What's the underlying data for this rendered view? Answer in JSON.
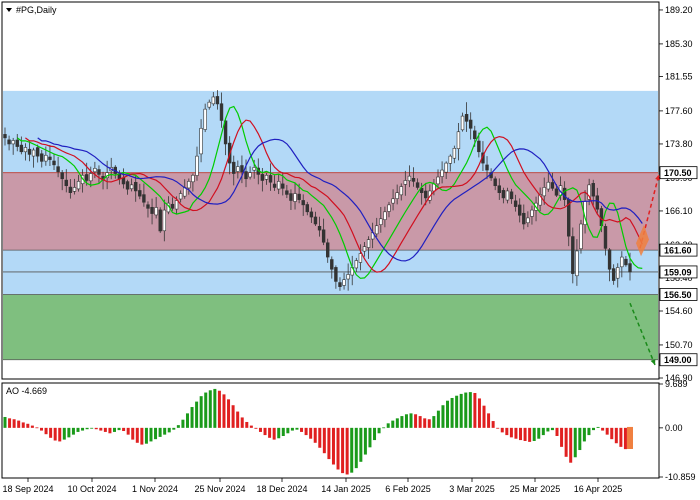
{
  "chart_data": [
    {
      "type": "candlestick",
      "title": "#PG,Daily",
      "ylim": [
        146.9,
        190.0
      ],
      "y_ticks": [
        "189.20",
        "185.30",
        "181.55",
        "177.60",
        "173.80",
        "169.90",
        "166.10",
        "162.20",
        "158.40",
        "154.60",
        "150.70",
        "146.90"
      ],
      "x_ticks": [
        "18 Sep 2024",
        "10 Oct 2024",
        "1 Nov 2024",
        "25 Nov 2024",
        "18 Dec 2024",
        "14 Jan 2025",
        "6 Feb 2025",
        "3 Mar 2025",
        "25 Mar 2025",
        "16 Apr 2025"
      ],
      "levels": [
        {
          "value": 170.5,
          "label": "170.50",
          "color": "#c0392b"
        },
        {
          "value": 161.6,
          "label": "161.60",
          "color": "#555555"
        },
        {
          "value": 159.09,
          "label": "159.09",
          "color": "#555555"
        },
        {
          "value": 156.5,
          "label": "156.50",
          "color": "#555555"
        },
        {
          "value": 149.0,
          "label": "149.00",
          "color": "#555555"
        }
      ],
      "zones": [
        {
          "from": 170.5,
          "to": 179.9,
          "color": "#b3d9f7"
        },
        {
          "from": 161.6,
          "to": 170.5,
          "color": "#c999a8"
        },
        {
          "from": 156.5,
          "to": 161.6,
          "color": "#b3d9f7"
        },
        {
          "from": 149.0,
          "to": 156.5,
          "color": "#7fbf7f"
        }
      ],
      "arrows": [
        {
          "from": 161.8,
          "to": 170.3,
          "color": "#e02020",
          "style": "dashed"
        },
        {
          "from": 155.5,
          "to": 148.4,
          "color": "#1a8a1a",
          "style": "dashed"
        }
      ],
      "series": [
        {
          "color": "#00cc00"
        },
        {
          "color": "#d01020"
        },
        {
          "color": "#2020c0"
        }
      ],
      "closes": [
        174.5,
        173.8,
        174.2,
        173.5,
        172.9,
        173.4,
        172.6,
        173.1,
        172.4,
        171.8,
        172.5,
        172.0,
        171.4,
        170.6,
        169.8,
        169.0,
        168.2,
        168.8,
        169.5,
        170.2,
        169.6,
        170.4,
        171.0,
        170.3,
        169.7,
        170.5,
        171.1,
        170.4,
        169.8,
        169.2,
        168.6,
        169.1,
        168.4,
        167.8,
        167.1,
        166.4,
        165.8,
        166.5,
        163.8,
        166.2,
        167.0,
        166.4,
        167.3,
        168.1,
        168.8,
        169.5,
        170.2,
        172.4,
        175.6,
        177.8,
        178.6,
        179.2,
        178.4,
        176.5,
        173.8,
        171.6,
        170.4,
        171.2,
        170.6,
        169.8,
        170.5,
        171.1,
        170.3,
        169.6,
        170.2,
        169.4,
        168.8,
        169.5,
        168.7,
        168.0,
        167.3,
        168.1,
        167.4,
        166.8,
        166.0,
        165.4,
        164.6,
        163.9,
        162.5,
        160.8,
        159.4,
        158.0,
        157.4,
        158.2,
        158.8,
        159.6,
        160.4,
        161.2,
        162.0,
        162.8,
        163.6,
        164.4,
        165.2,
        166.0,
        166.8,
        167.5,
        168.2,
        168.9,
        169.6,
        170.1,
        169.5,
        168.8,
        168.2,
        167.6,
        168.4,
        169.2,
        170.0,
        170.8,
        171.6,
        172.4,
        173.3,
        175.2,
        177.0,
        176.4,
        175.6,
        174.4,
        172.9,
        171.6,
        170.8,
        169.9,
        169.0,
        168.2,
        167.6,
        168.4,
        167.5,
        166.6,
        165.6,
        164.6,
        165.3,
        166.2,
        167.0,
        168.0,
        168.8,
        169.4,
        168.7,
        167.9,
        169.0,
        167.4,
        163.2,
        158.9,
        161.5,
        164.6,
        167.2,
        169.1,
        167.8,
        166.3,
        164.4,
        161.8,
        159.4,
        158.1,
        159.6,
        160.8,
        159.9,
        159.09
      ],
      "ao": {
        "label": "AO -4.669",
        "ylim": [
          -10.859,
          9.689
        ],
        "y_ticks": [
          "9.689",
          "0.00",
          "-10.859"
        ],
        "values": [
          2.4,
          2.1,
          1.9,
          1.6,
          1.2,
          0.9,
          0.5,
          0.1,
          -0.6,
          -1.4,
          -2.2,
          -2.8,
          -3.0,
          -2.6,
          -2.1,
          -1.5,
          -0.9,
          -0.6,
          -0.3,
          -0.1,
          -0.3,
          -0.6,
          -0.9,
          -1.2,
          -0.9,
          -0.5,
          -0.7,
          -1.5,
          -2.6,
          -3.3,
          -3.7,
          -3.5,
          -3.0,
          -2.5,
          -2.0,
          -1.5,
          -1.0,
          -0.4,
          0.6,
          1.8,
          3.2,
          4.6,
          5.8,
          7.0,
          7.8,
          8.3,
          8.6,
          8.2,
          7.4,
          6.3,
          5.0,
          3.6,
          2.3,
          1.3,
          0.5,
          -0.2,
          -0.9,
          -1.6,
          -2.2,
          -2.6,
          -2.3,
          -1.8,
          -1.2,
          -0.6,
          -0.4,
          -0.9,
          -1.6,
          -2.4,
          -3.3,
          -4.4,
          -5.6,
          -6.9,
          -8.1,
          -9.2,
          -10.0,
          -10.3,
          -9.9,
          -8.9,
          -7.5,
          -5.9,
          -4.3,
          -2.7,
          -1.2,
          0.1,
          1.0,
          1.6,
          2.1,
          2.6,
          3.0,
          3.2,
          3.0,
          2.6,
          2.1,
          1.9,
          2.6,
          3.8,
          5.0,
          6.0,
          6.6,
          7.1,
          7.5,
          7.8,
          7.9,
          7.7,
          6.5,
          4.9,
          3.2,
          1.5,
          0.0,
          -1.0,
          -1.6,
          -2.1,
          -2.4,
          -2.7,
          -2.9,
          -3.1,
          -2.9,
          -2.4,
          -1.6,
          -0.8,
          -0.5,
          -1.8,
          -4.2,
          -6.4,
          -7.7,
          -6.5,
          -4.9,
          -3.0,
          -1.6,
          -0.5,
          0.2,
          -0.6,
          -1.5,
          -2.5,
          -3.4,
          -4.2,
          -4.7,
          -4.669
        ]
      }
    }
  ]
}
